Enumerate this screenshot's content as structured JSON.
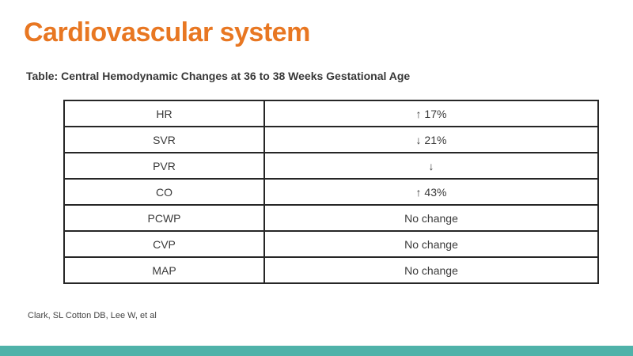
{
  "slide": {
    "title": "Cardiovascular system",
    "caption": "Table: Central Hemodynamic Changes at 36 to 38 Weeks Gestational Age",
    "citation": "Clark, SL Cotton DB, Lee W, et al"
  },
  "colors": {
    "title_orange": "#E87722",
    "footer_teal": "#4FB2A9",
    "table_border": "#262626",
    "body_text": "#3A3A3A"
  },
  "table": {
    "rows": [
      {
        "parameter": "HR",
        "change": "↑ 17%"
      },
      {
        "parameter": "SVR",
        "change": "↓ 21%"
      },
      {
        "parameter": "PVR",
        "change": "↓"
      },
      {
        "parameter": "CO",
        "change": "↑ 43%"
      },
      {
        "parameter": "PCWP",
        "change": "No change"
      },
      {
        "parameter": "CVP",
        "change": "No change"
      },
      {
        "parameter": "MAP",
        "change": "No change"
      }
    ]
  }
}
